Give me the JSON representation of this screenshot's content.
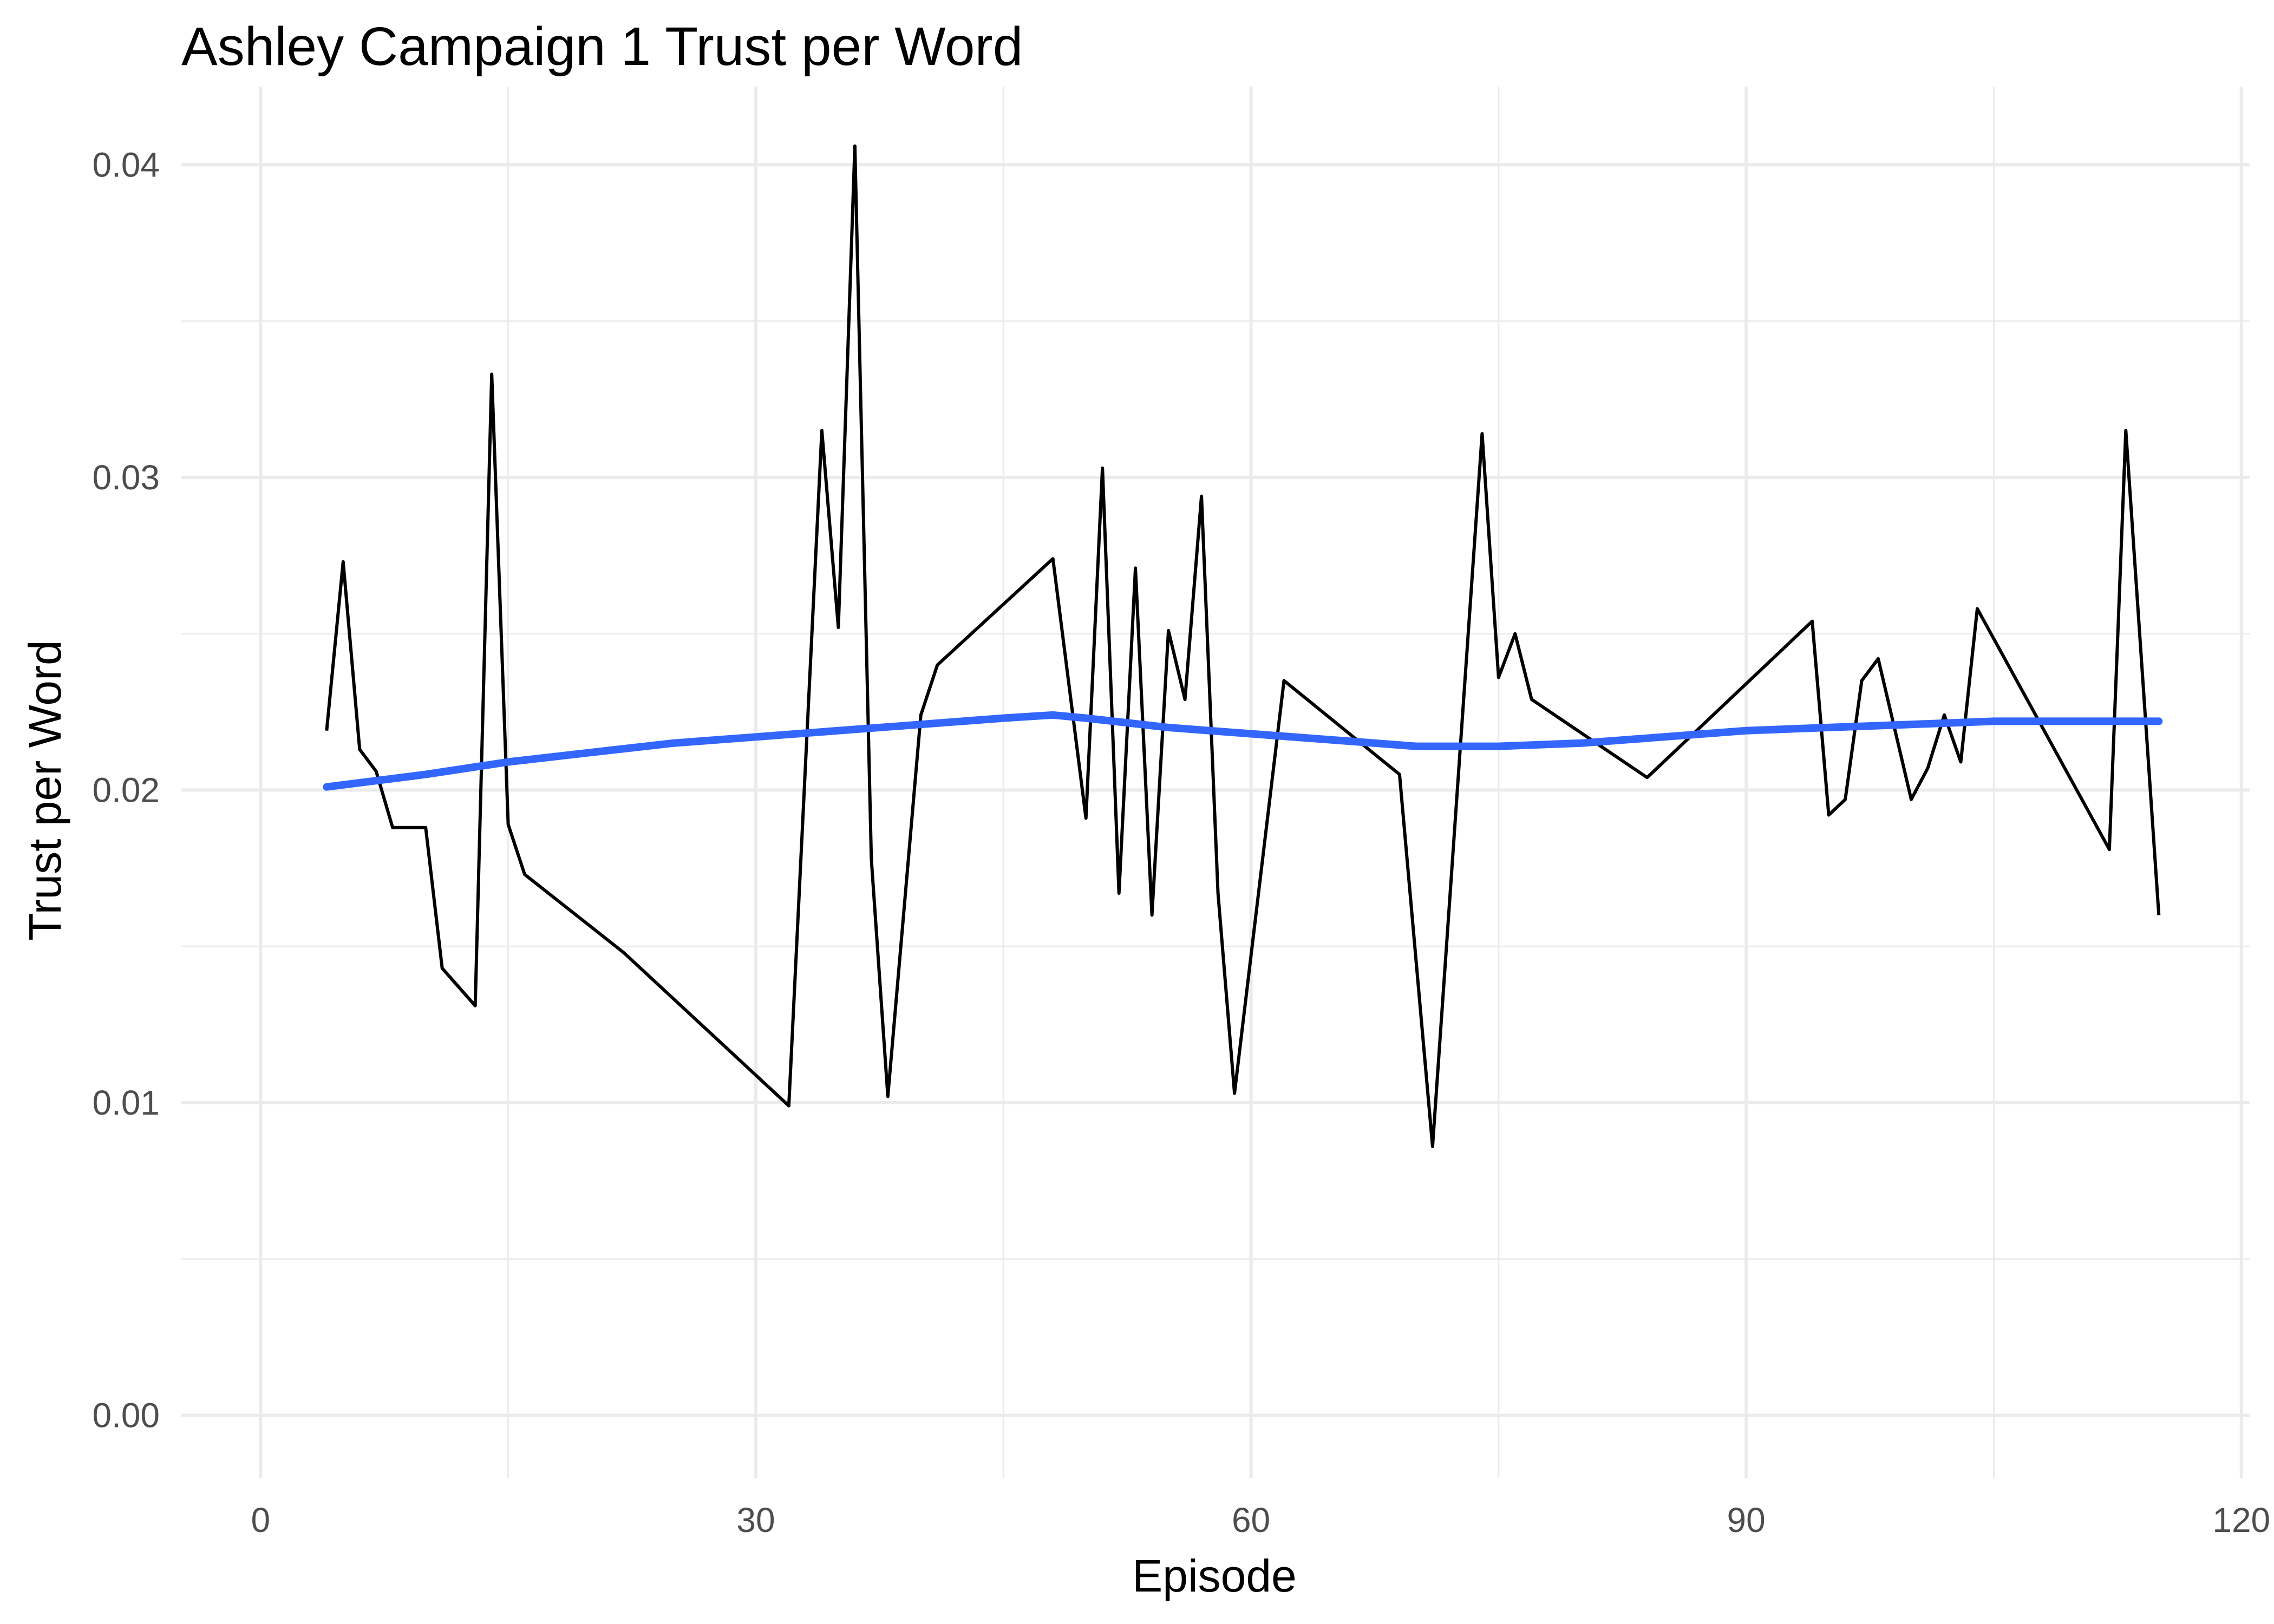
{
  "chart_data": {
    "type": "line",
    "title": "Ashley Campaign 1 Trust per Word",
    "xlabel": "Episode",
    "ylabel": "Trust per Word",
    "xlim": [
      -4.8,
      120.5
    ],
    "ylim": [
      -0.002,
      0.0425
    ],
    "x_ticks": [
      0,
      30,
      60,
      90,
      120
    ],
    "x_tick_labels": [
      "0",
      "30",
      "60",
      "90",
      "120"
    ],
    "x_minor": [
      15,
      45,
      75,
      105
    ],
    "y_ticks": [
      0.0,
      0.01,
      0.02,
      0.03,
      0.04
    ],
    "y_tick_labels": [
      "0.00",
      "0.01",
      "0.02",
      "0.03",
      "0.04"
    ],
    "y_minor": [
      0.005,
      0.015,
      0.025,
      0.035
    ],
    "grid": true,
    "series": [
      {
        "kind": "line",
        "color": "#000000",
        "x": [
          4,
          5,
          6,
          7,
          8,
          9,
          10,
          11,
          13,
          14,
          15,
          16,
          22,
          32,
          34,
          35,
          36,
          37,
          38,
          40,
          41,
          48,
          50,
          51,
          52,
          53,
          54,
          55,
          56,
          57,
          58,
          59,
          62,
          69,
          71,
          74,
          75,
          76,
          77,
          84,
          94,
          95,
          96,
          97,
          98,
          100,
          101,
          102,
          103,
          104,
          112,
          113,
          115
        ],
        "y": [
          0.0219,
          0.0273,
          0.0213,
          0.0206,
          0.0188,
          0.0188,
          0.0188,
          0.0143,
          0.0131,
          0.0333,
          0.0189,
          0.0173,
          0.0148,
          0.0099,
          0.0315,
          0.0252,
          0.0406,
          0.0178,
          0.0102,
          0.0224,
          0.024,
          0.0274,
          0.0191,
          0.0303,
          0.0167,
          0.0271,
          0.016,
          0.0251,
          0.0229,
          0.0294,
          0.0167,
          0.0103,
          0.0235,
          0.0205,
          0.0086,
          0.0314,
          0.0236,
          0.025,
          0.0229,
          0.0204,
          0.0254,
          0.0192,
          0.0197,
          0.0235,
          0.0242,
          0.0197,
          0.0207,
          0.0224,
          0.0209,
          0.0258,
          0.0181,
          0.0315,
          0.016
        ]
      },
      {
        "kind": "smooth",
        "color": "#3366ff",
        "x": [
          4,
          10,
          15,
          20,
          25,
          30,
          35,
          40,
          45,
          48,
          50,
          55,
          60,
          65,
          70,
          75,
          80,
          85,
          90,
          95,
          100,
          105,
          110,
          115
        ],
        "y": [
          0.0201,
          0.0205,
          0.0209,
          0.0212,
          0.0215,
          0.0217,
          0.0219,
          0.0221,
          0.0223,
          0.0224,
          0.0223,
          0.022,
          0.0218,
          0.0216,
          0.0214,
          0.0214,
          0.0215,
          0.0217,
          0.0219,
          0.022,
          0.0221,
          0.0222,
          0.0222,
          0.0222
        ]
      }
    ]
  }
}
